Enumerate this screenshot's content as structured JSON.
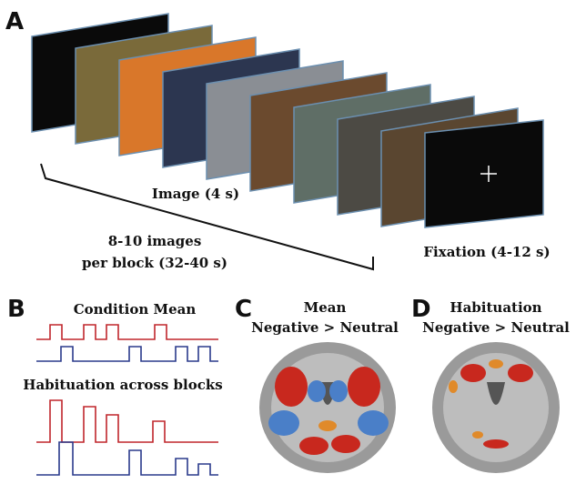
{
  "panel_a": {
    "label": "A",
    "image_caption": "Image (4 s)",
    "block_caption": [
      "8-10 images",
      "per block (32-40 s)"
    ],
    "fixation_caption": "Fixation (4-12 s)"
  },
  "panel_b": {
    "label": "B",
    "title_top": "Condition Mean",
    "title_bottom": "Habituation across blocks"
  },
  "panel_c": {
    "label": "C",
    "title": [
      "Mean",
      "Negative > Neutral"
    ]
  },
  "panel_d": {
    "label": "D",
    "title": [
      "Habituation",
      "Negative > Neutral"
    ]
  }
}
